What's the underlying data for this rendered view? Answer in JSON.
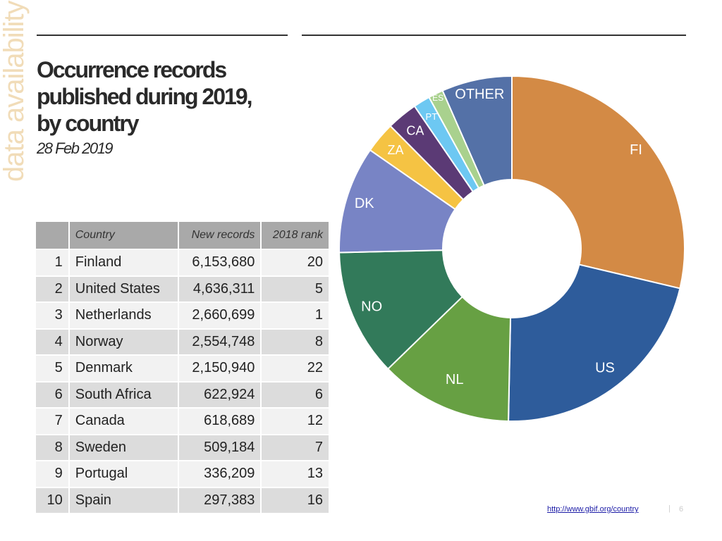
{
  "side_label": "data availability",
  "title_lines": [
    "Occurrence records",
    "published during 2019,",
    "by country"
  ],
  "date": "28 Feb 2019",
  "table": {
    "headers": [
      "",
      "Country",
      "New records",
      "2018 rank"
    ],
    "rows": [
      {
        "rank": "1",
        "country": "Finland",
        "records": "6,153,680",
        "rank2018": "20"
      },
      {
        "rank": "2",
        "country": "United States",
        "records": "4,636,311",
        "rank2018": "5"
      },
      {
        "rank": "3",
        "country": "Netherlands",
        "records": "2,660,699",
        "rank2018": "1"
      },
      {
        "rank": "4",
        "country": "Norway",
        "records": "2,554,748",
        "rank2018": "8"
      },
      {
        "rank": "5",
        "country": "Denmark",
        "records": "2,150,940",
        "rank2018": "22"
      },
      {
        "rank": "6",
        "country": "South Africa",
        "records": "622,924",
        "rank2018": "6"
      },
      {
        "rank": "7",
        "country": "Canada",
        "records": "618,689",
        "rank2018": "12"
      },
      {
        "rank": "8",
        "country": "Sweden",
        "records": "509,184",
        "rank2018": "7"
      },
      {
        "rank": "9",
        "country": "Portugal",
        "records": "336,209",
        "rank2018": "13"
      },
      {
        "rank": "10",
        "country": "Spain",
        "records": "297,383",
        "rank2018": "16"
      }
    ]
  },
  "chart_data": {
    "type": "pie",
    "donut": true,
    "slices": [
      {
        "label": "FI",
        "value": 6153680,
        "color": "#d38a45"
      },
      {
        "label": "US",
        "value": 4636311,
        "color": "#2e5c9b"
      },
      {
        "label": "NL",
        "value": 2660699,
        "color": "#67a043"
      },
      {
        "label": "NO",
        "value": 2554748,
        "color": "#327a5a"
      },
      {
        "label": "DK",
        "value": 2150940,
        "color": "#7884c5"
      },
      {
        "label": "ZA",
        "value": 622924,
        "color": "#f5c343"
      },
      {
        "label": "CA",
        "value": 618689,
        "color": "#5b3a75"
      },
      {
        "label": "PT",
        "value": 336209,
        "color": "#6dc8f2"
      },
      {
        "label": "ES",
        "value": 297383,
        "color": "#a9d18e"
      },
      {
        "label": "OTHER",
        "value": 1410000,
        "color": "#5471a7"
      }
    ]
  },
  "footer": {
    "link": "http://www.gbif.org/country",
    "separator": "|",
    "page_number": "6"
  }
}
